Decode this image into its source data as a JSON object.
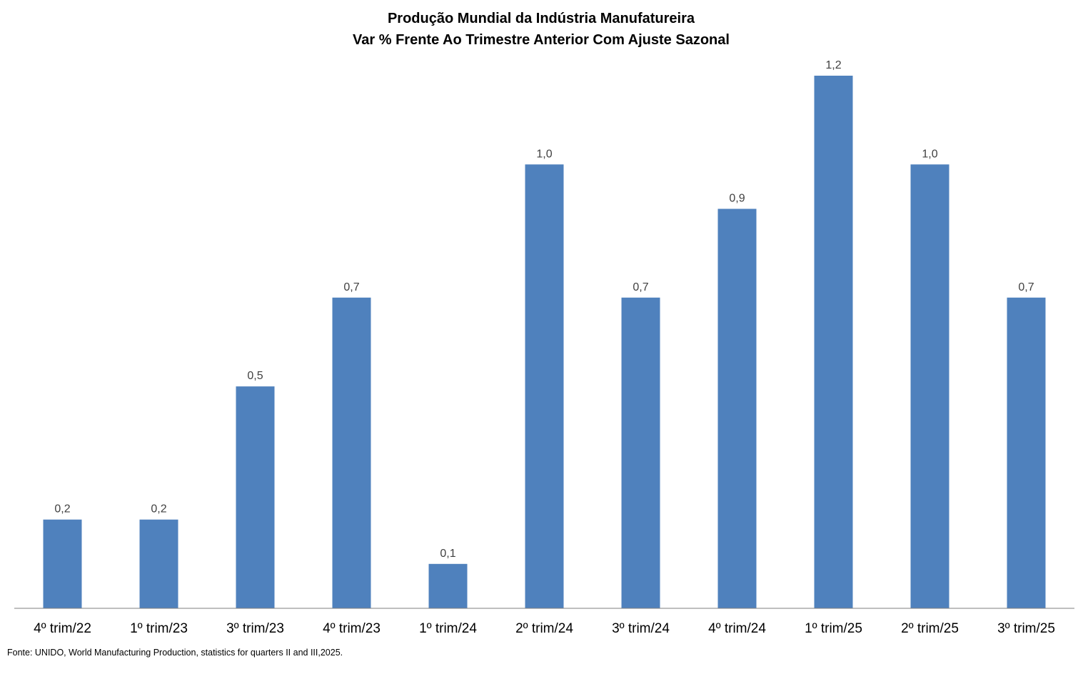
{
  "chart_data": {
    "type": "bar",
    "title": "Produção Mundial da Indústria Manufatureira",
    "subtitle": "Var % Frente Ao Trimestre Anterior Com Ajuste Sazonal",
    "categories": [
      "4º trim/22",
      "1º trim/23",
      "3º trim/23",
      "4º trim/23",
      "1º trim/24",
      "2º trim/24",
      "3º trim/24",
      "4º trim/24",
      "1º trim/25",
      "2º trim/25",
      "3º trim/25"
    ],
    "values": [
      0.2,
      0.2,
      0.5,
      0.7,
      0.1,
      1.0,
      0.7,
      0.9,
      1.2,
      1.0,
      0.7
    ],
    "data_labels": [
      "0,2",
      "0,2",
      "0,5",
      "0,7",
      "0,1",
      "1,0",
      "0,7",
      "0,9",
      "1,2",
      "1,0",
      "0,7"
    ],
    "xlabel": "",
    "ylabel": "",
    "ylim": [
      0,
      1.2
    ],
    "grid": false,
    "legend": "none",
    "bar_color": "#4F81BD",
    "axis_color": "#7F7F7F",
    "source": "Fonte: UNIDO, World Manufacturing Production,  statistics for quarters II and III,2025."
  }
}
